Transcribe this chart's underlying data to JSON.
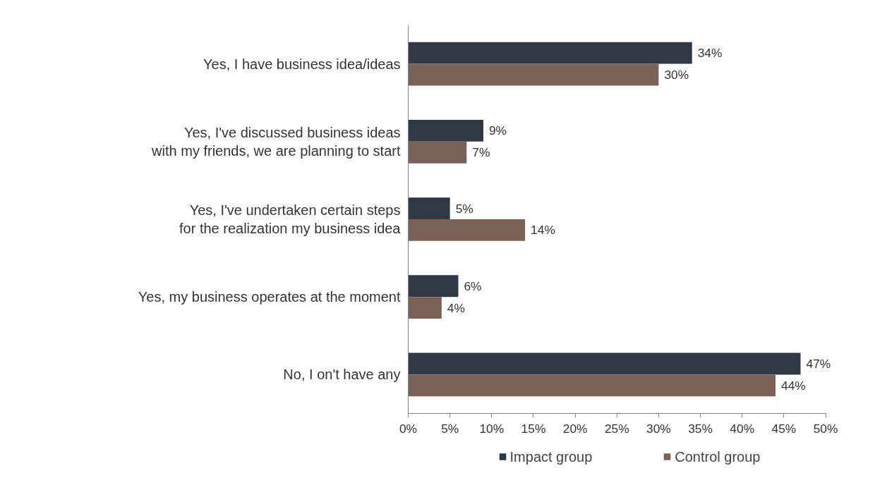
{
  "chart_data": {
    "type": "bar",
    "orientation": "horizontal",
    "categories": [
      "Yes, I have business idea/ideas",
      "Yes, I've discussed business ideas\nwith my friends, we are planning to start",
      "Yes, I've undertaken certain steps\nfor the realization my business idea",
      "Yes, my business operates at the moment",
      "No, I on't have any"
    ],
    "series": [
      {
        "name": "Impact group",
        "color": "#2f3843",
        "values": [
          34,
          9,
          5,
          6,
          47
        ],
        "value_labels": [
          "34%",
          "9%",
          "5%",
          "6%",
          "47%"
        ]
      },
      {
        "name": "Control group",
        "color": "#7a6258",
        "values": [
          30,
          7,
          14,
          4,
          44
        ],
        "value_labels": [
          "30%",
          "7%",
          "14%",
          "4%",
          "44%"
        ]
      }
    ],
    "xlim": [
      0,
      50
    ],
    "xticks": [
      {
        "value": 0,
        "label": "0%"
      },
      {
        "value": 5,
        "label": "5%"
      },
      {
        "value": 10,
        "label": "10%"
      },
      {
        "value": 15,
        "label": "15%"
      },
      {
        "value": 20,
        "label": "20%"
      },
      {
        "value": 25,
        "label": "25%"
      },
      {
        "value": 30,
        "label": "30%"
      },
      {
        "value": 35,
        "label": "35%"
      },
      {
        "value": 40,
        "label": "40%"
      },
      {
        "value": 45,
        "label": "45%"
      },
      {
        "value": 50,
        "label": "50%"
      }
    ],
    "grid": false,
    "legend": "bottom"
  }
}
